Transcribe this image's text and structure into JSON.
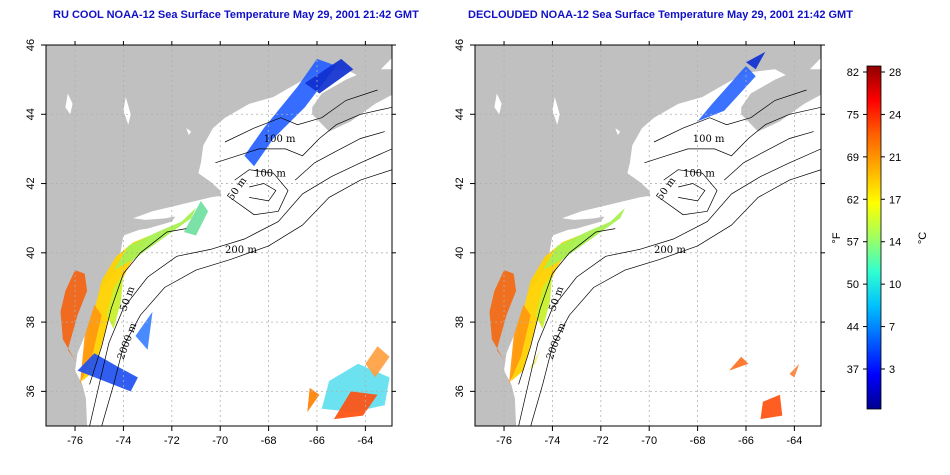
{
  "panels": [
    {
      "title": "RU COOL NOAA-12 Sea Surface Temperature May 29, 2001 21:42 GMT",
      "contour_labels": [
        "100 m",
        "100 m",
        "50 m",
        "200 m",
        "50 m",
        "2000 m"
      ]
    },
    {
      "title": "DECLOUDED NOAA-12 Sea Surface Temperature May 29, 2001 21:42 GMT",
      "contour_labels": [
        "100 m",
        "100 m",
        "50 m",
        "200 m",
        "50 m",
        "2000 m"
      ]
    }
  ],
  "axes": {
    "x_ticks": [
      "-76",
      "-74",
      "-72",
      "-70",
      "-68",
      "-66",
      "-64"
    ],
    "y_ticks": [
      "46",
      "44",
      "42",
      "40",
      "38",
      "36"
    ]
  },
  "colorbar": {
    "fahrenheit_label": "°F",
    "celsius_label": "°C",
    "fahrenheit_ticks": [
      "82",
      "75",
      "69",
      "62",
      "57",
      "50",
      "44",
      "37"
    ],
    "celsius_ticks": [
      "28",
      "24",
      "21",
      "17",
      "14",
      "10",
      "7",
      "3"
    ],
    "colors": [
      "#00008f",
      "#0000ff",
      "#0060ff",
      "#00c0ff",
      "#30ffd0",
      "#a0ff60",
      "#ffff00",
      "#ffb000",
      "#ff6000",
      "#ff0000",
      "#8f0000"
    ]
  },
  "colors": {
    "land": "#c0c0c0",
    "title": "#1010c8",
    "grid": "#b0b0b0"
  }
}
